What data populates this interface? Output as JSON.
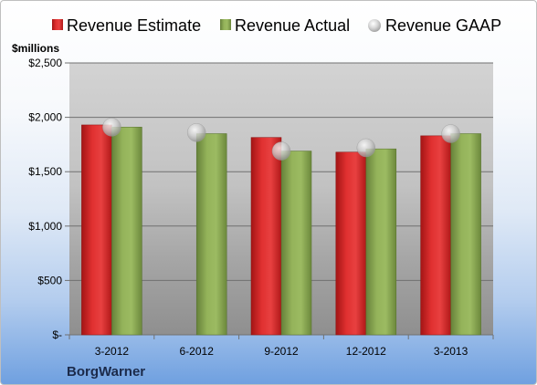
{
  "company": "BorgWarner",
  "colors": {
    "estimate": "#d02020",
    "actual": "#7f9f48",
    "gaap": "#c8c8c8"
  },
  "chart_data": {
    "type": "bar",
    "ylabel": "$millions",
    "ylim": [
      0,
      2500
    ],
    "yticks": [
      {
        "value": 0,
        "label": "$-"
      },
      {
        "value": 500,
        "label": "$500"
      },
      {
        "value": 1000,
        "label": "$1,000"
      },
      {
        "value": 1500,
        "label": "$1,500"
      },
      {
        "value": 2000,
        "label": "$2,000"
      },
      {
        "value": 2500,
        "label": "$2,500"
      }
    ],
    "grid": true,
    "legend_position": "top",
    "categories": [
      "3-2012",
      "6-2012",
      "9-2012",
      "12-2012",
      "3-2013"
    ],
    "series": [
      {
        "name": "Revenue Estimate",
        "kind": "bar",
        "color": "#d02020",
        "values": [
          1930,
          null,
          1815,
          1680,
          1830
        ]
      },
      {
        "name": "Revenue Actual",
        "kind": "bar",
        "color": "#7f9f48",
        "values": [
          1910,
          1850,
          1690,
          1710,
          1850
        ]
      },
      {
        "name": "Revenue GAAP",
        "kind": "marker",
        "color": "#c8c8c8",
        "values": [
          1910,
          1860,
          1690,
          1720,
          1850
        ]
      }
    ]
  }
}
